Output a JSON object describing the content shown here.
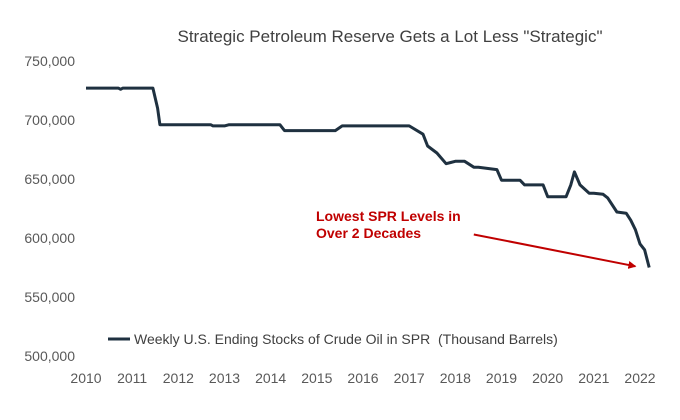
{
  "chart_data": {
    "type": "line",
    "title": "Strategic Petroleum Reserve Gets a Lot Less \"Strategic\"",
    "xlabel": "",
    "ylabel": "",
    "xlim": [
      2010,
      2022.3
    ],
    "ylim": [
      500000,
      750000
    ],
    "x_ticks": [
      2010,
      2011,
      2012,
      2013,
      2014,
      2015,
      2016,
      2017,
      2018,
      2019,
      2020,
      2021,
      2022
    ],
    "y_ticks": [
      500000,
      550000,
      600000,
      650000,
      700000,
      750000
    ],
    "y_tick_labels": [
      "500,000",
      "550,000",
      "600,000",
      "650,000",
      "700,000",
      "750,000"
    ],
    "grid": false,
    "legend_position": "bottom-left",
    "colors": {
      "line": "#1f3140",
      "annotation": "#c00000",
      "text": "#595959"
    },
    "series": [
      {
        "name": "Weekly U.S. Ending Stocks of Crude Oil in SPR  (Thousand Barrels)",
        "x": [
          2010.0,
          2010.7,
          2010.75,
          2010.8,
          2011.0,
          2011.45,
          2011.55,
          2011.6,
          2012.0,
          2012.7,
          2012.75,
          2013.0,
          2013.1,
          2014.0,
          2014.2,
          2014.3,
          2015.0,
          2015.4,
          2015.55,
          2016.0,
          2017.0,
          2017.3,
          2017.4,
          2017.6,
          2017.8,
          2017.9,
          2018.0,
          2018.2,
          2018.4,
          2018.5,
          2018.9,
          2019.0,
          2019.4,
          2019.5,
          2019.9,
          2020.0,
          2020.4,
          2020.5,
          2020.58,
          2020.7,
          2020.9,
          2021.0,
          2021.2,
          2021.3,
          2021.5,
          2021.7,
          2021.8,
          2021.9,
          2022.0,
          2022.1,
          2022.2
        ],
        "values": [
          727000,
          727000,
          726000,
          727000,
          727000,
          727000,
          710000,
          696000,
          696000,
          696000,
          695000,
          695000,
          696000,
          696000,
          696000,
          691000,
          691000,
          691000,
          695000,
          695000,
          695000,
          688000,
          678000,
          672000,
          663000,
          664000,
          665000,
          665000,
          660000,
          660000,
          658000,
          649000,
          649000,
          645000,
          645000,
          635000,
          635000,
          645000,
          656000,
          645000,
          638000,
          638000,
          637000,
          634000,
          622000,
          621000,
          615000,
          607000,
          595000,
          590000,
          575000
        ]
      }
    ],
    "annotations": [
      {
        "lines": [
          "Lowest SPR Levels in",
          "Over 2 Decades"
        ],
        "arrow_from": [
          2018.4,
          603000
        ],
        "arrow_to": [
          2021.9,
          576000
        ]
      }
    ]
  }
}
